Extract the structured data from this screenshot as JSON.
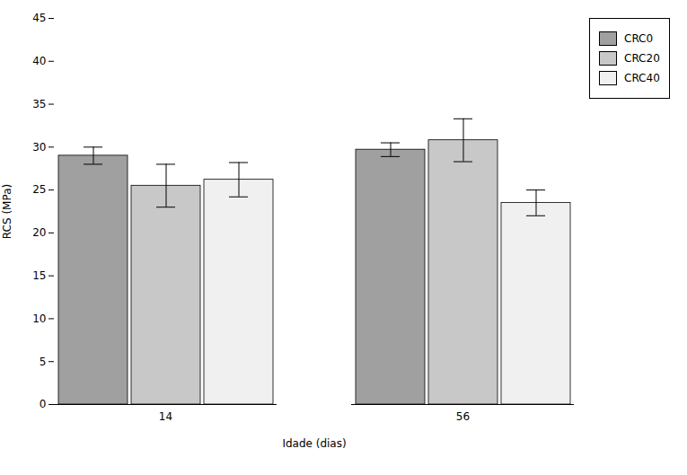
{
  "chart_data": {
    "type": "bar",
    "categories": [
      14,
      56
    ],
    "series": [
      {
        "name": "CRC0",
        "color": "#a0a0a0",
        "values": [
          29.0,
          29.7
        ],
        "errors": [
          1.0,
          0.8
        ]
      },
      {
        "name": "CRC20",
        "color": "#c8c8c8",
        "values": [
          25.5,
          30.8
        ],
        "errors": [
          2.5,
          2.5
        ]
      },
      {
        "name": "CRC40",
        "color": "#f0f0f0",
        "values": [
          26.2,
          23.5
        ],
        "errors": [
          2.0,
          1.5
        ]
      }
    ],
    "xlabel": "Idade (dias)",
    "ylabel": "RCS (MPa)",
    "ylim": [
      0,
      45
    ],
    "yticks": [
      0,
      5,
      10,
      15,
      20,
      25,
      30,
      35,
      40,
      45
    ],
    "grid": false,
    "legend": "upper right"
  }
}
